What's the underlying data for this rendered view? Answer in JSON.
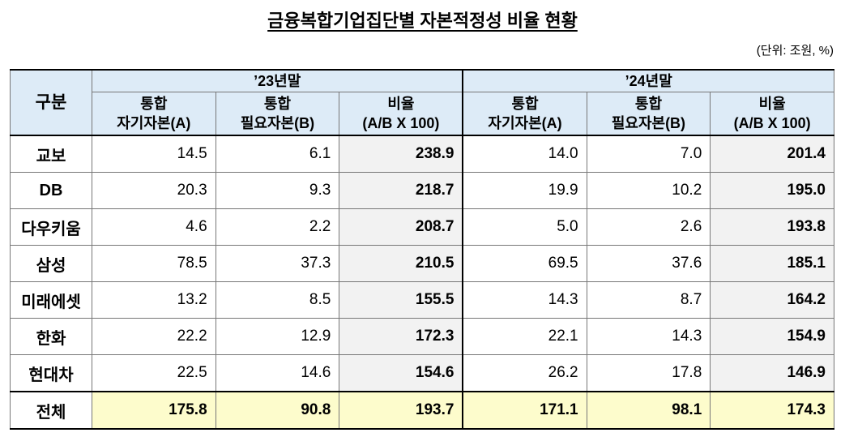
{
  "title": "금융복합기업집단별 자본적정성 비율 현황",
  "unit": "(단위: 조원, %)",
  "table": {
    "corner": "구분",
    "groups": [
      "’23년말",
      "’24년말"
    ],
    "columns": [
      [
        "통합",
        "자기자본(A)"
      ],
      [
        "통합",
        "필요자본(B)"
      ],
      [
        "비율",
        "(A/B X 100)"
      ],
      [
        "통합",
        "자기자본(A)"
      ],
      [
        "통합",
        "필요자본(B)"
      ],
      [
        "비율",
        "(A/B X 100)"
      ]
    ],
    "rows": [
      [
        "교보",
        "14.5",
        "6.1",
        "238.9",
        "14.0",
        "7.0",
        "201.4"
      ],
      [
        "DB",
        "20.3",
        "9.3",
        "218.7",
        "19.9",
        "10.2",
        "195.0"
      ],
      [
        "다우키움",
        "4.6",
        "2.2",
        "208.7",
        "5.0",
        "2.6",
        "193.8"
      ],
      [
        "삼성",
        "78.5",
        "37.3",
        "210.5",
        "69.5",
        "37.6",
        "185.1"
      ],
      [
        "미래에셋",
        "13.2",
        "8.5",
        "155.5",
        "14.3",
        "8.7",
        "164.2"
      ],
      [
        "한화",
        "22.2",
        "12.9",
        "172.3",
        "22.1",
        "14.3",
        "154.9"
      ],
      [
        "현대차",
        "22.5",
        "14.6",
        "154.6",
        "26.2",
        "17.8",
        "146.9"
      ],
      [
        "전체",
        "175.8",
        "90.8",
        "193.7",
        "171.1",
        "98.1",
        "174.3"
      ]
    ]
  }
}
